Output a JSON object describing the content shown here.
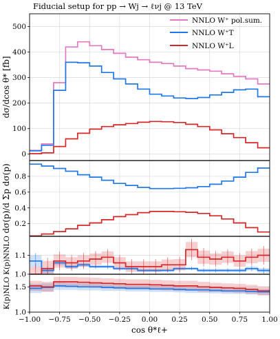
{
  "chart_data": {
    "type": "line",
    "title": "Fiducial setup for pp → Wj → ℓνj @ 13 TeV",
    "xlabel": "cos θ*ℓ+",
    "x_edges": [
      -1.0,
      -0.9,
      -0.8,
      -0.7,
      -0.6,
      -0.5,
      -0.4,
      -0.3,
      -0.2,
      -0.1,
      0.0,
      0.1,
      0.2,
      0.3,
      0.4,
      0.5,
      0.6,
      0.7,
      0.8,
      0.9,
      1.0
    ],
    "xlim": [
      -1.0,
      1.0
    ],
    "xticks": [
      "−1.00",
      "−0.75",
      "−0.50",
      "−0.25",
      "0.00",
      "0.25",
      "0.50",
      "0.75",
      "1.00"
    ],
    "colors": {
      "pol_sum": "#e377c2",
      "transverse": "#1f77e8",
      "longitudinal": "#d62728"
    },
    "panels": [
      {
        "name": "cross-section",
        "ylabel": "dσ/dcos θ* [fb]",
        "ylim": [
          -25,
          550
        ],
        "yticks": [
          "0",
          "100",
          "200",
          "300",
          "400",
          "500"
        ],
        "grid": true,
        "legend_position": "top-right",
        "series": [
          {
            "name": "NNLO W⁺ pol.sum.",
            "key": "pol_sum",
            "values": [
              15,
              40,
              280,
              420,
              440,
              425,
              410,
              395,
              380,
              370,
              360,
              355,
              345,
              335,
              330,
              325,
              315,
              305,
              295,
              275
            ]
          },
          {
            "name": "NNLO W⁺T",
            "key": "transverse",
            "values": [
              13,
              35,
              250,
              360,
              358,
              345,
              320,
              295,
              275,
              255,
              235,
              228,
              220,
              218,
              222,
              232,
              242,
              252,
              255,
              225
            ]
          },
          {
            "name": "NNLO W⁺L",
            "key": "longitudinal",
            "values": [
              2,
              5,
              30,
              60,
              82,
              98,
              108,
              115,
              120,
              125,
              128,
              127,
              124,
              117,
              108,
              95,
              80,
              65,
              45,
              25
            ]
          }
        ]
      },
      {
        "name": "fractions",
        "ylabel": "dσ(p)/d Σp dσ(p)",
        "ylim": [
          0.04,
          1.0
        ],
        "yticks": [
          "0.2",
          "0.4",
          "0.6",
          "0.8"
        ],
        "grid": true,
        "series": [
          {
            "key": "transverse",
            "values": [
              0.955,
              0.93,
              0.9,
              0.865,
              0.82,
              0.79,
              0.75,
              0.71,
              0.685,
              0.66,
              0.645,
              0.645,
              0.648,
              0.655,
              0.67,
              0.7,
              0.74,
              0.79,
              0.85,
              0.905
            ]
          },
          {
            "key": "longitudinal",
            "values": [
              0.045,
              0.07,
              0.1,
              0.135,
              0.18,
              0.21,
              0.25,
              0.29,
              0.315,
              0.34,
              0.355,
              0.355,
              0.352,
              0.345,
              0.33,
              0.3,
              0.26,
              0.21,
              0.15,
              0.095
            ]
          }
        ]
      },
      {
        "name": "k-factor-nnlo",
        "ylabel": "K(p)NNLO",
        "ylim": [
          1.0,
          1.2
        ],
        "yticks": [
          "1.0",
          "1.1"
        ],
        "grid": true,
        "series": [
          {
            "key": "transverse",
            "values": [
              1.07,
              1.02,
              1.06,
              1.04,
              1.05,
              1.04,
              1.04,
              1.03,
              1.03,
              1.02,
              1.02,
              1.02,
              1.03,
              1.03,
              1.02,
              1.02,
              1.02,
              1.02,
              1.03,
              1.02
            ],
            "band": [
              0.03,
              0.015,
              0.012,
              0.01,
              0.01,
              0.008,
              0.008,
              0.008,
              0.007,
              0.007,
              0.007,
              0.007,
              0.007,
              0.007,
              0.008,
              0.008,
              0.008,
              0.009,
              0.01,
              0.012
            ]
          },
          {
            "key": "longitudinal",
            "values": [
              1.0,
              1.03,
              1.07,
              1.06,
              1.07,
              1.08,
              1.09,
              1.06,
              1.04,
              1.04,
              1.04,
              1.05,
              1.05,
              1.13,
              1.09,
              1.08,
              1.09,
              1.07,
              1.09,
              1.1
            ],
            "band": [
              0.04,
              0.04,
              0.035,
              0.03,
              0.03,
              0.03,
              0.03,
              0.03,
              0.028,
              0.028,
              0.028,
              0.028,
              0.03,
              0.04,
              0.035,
              0.03,
              0.03,
              0.03,
              0.032,
              0.035
            ]
          }
        ]
      },
      {
        "name": "k-factor-nlo",
        "ylabel": "K(p)NLO",
        "ylim": [
          1.0,
          1.75
        ],
        "yticks": [
          "1.0",
          "1.5"
        ],
        "grid": true,
        "series": [
          {
            "key": "transverse",
            "values": [
              1.47,
              1.49,
              1.52,
              1.51,
              1.5,
              1.5,
              1.49,
              1.48,
              1.47,
              1.47,
              1.46,
              1.46,
              1.45,
              1.44,
              1.44,
              1.43,
              1.42,
              1.42,
              1.41,
              1.4
            ],
            "band": [
              0.09,
              0.08,
              0.08,
              0.07,
              0.07,
              0.07,
              0.07,
              0.06,
              0.06,
              0.06,
              0.06,
              0.06,
              0.06,
              0.06,
              0.06,
              0.06,
              0.06,
              0.06,
              0.06,
              0.06
            ]
          },
          {
            "key": "longitudinal",
            "values": [
              1.52,
              1.5,
              1.6,
              1.6,
              1.59,
              1.58,
              1.57,
              1.56,
              1.55,
              1.55,
              1.54,
              1.53,
              1.52,
              1.52,
              1.5,
              1.49,
              1.48,
              1.47,
              1.45,
              1.42
            ],
            "band": [
              0.1,
              0.1,
              0.1,
              0.1,
              0.1,
              0.1,
              0.1,
              0.1,
              0.1,
              0.1,
              0.1,
              0.1,
              0.1,
              0.1,
              0.1,
              0.09,
              0.09,
              0.09,
              0.09,
              0.09
            ]
          }
        ]
      }
    ]
  }
}
